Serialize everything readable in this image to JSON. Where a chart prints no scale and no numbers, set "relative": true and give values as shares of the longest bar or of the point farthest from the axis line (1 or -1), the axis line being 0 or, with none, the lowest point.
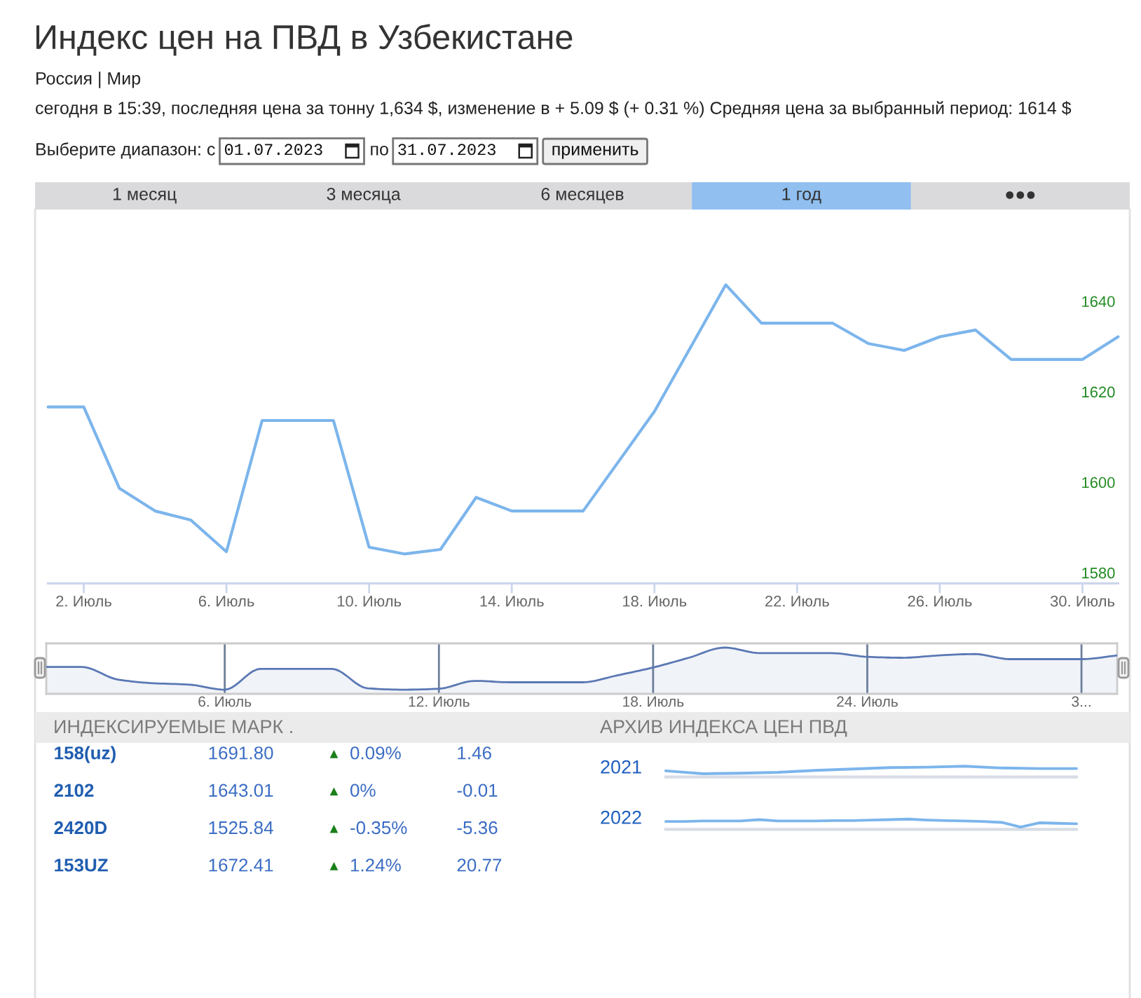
{
  "chart_data": [
    {
      "type": "line",
      "title": "Индекс цен на ПВД в Узбекистане",
      "subtitle": "Россия | Мир",
      "annotations": [
        "сегодня в 15:39, последняя цена за тонну 1,634 $, изменение в + 5.09 $ (+ 0.31 %) Средняя цена за выбранный период: 1614 $",
        "Выберите диапазон: с",
        "01.07.2023",
        "по",
        "31.07.2023",
        "применить",
        "1 месяц",
        "3 месяца",
        "6 месяцев",
        "1 год",
        "●●●"
      ],
      "x": [
        "2023-07-01",
        "2023-07-02",
        "2023-07-03",
        "2023-07-04",
        "2023-07-05",
        "2023-07-06",
        "2023-07-07",
        "2023-07-08",
        "2023-07-09",
        "2023-07-10",
        "2023-07-11",
        "2023-07-12",
        "2023-07-13",
        "2023-07-14",
        "2023-07-15",
        "2023-07-16",
        "2023-07-17",
        "2023-07-18",
        "2023-07-19",
        "2023-07-20",
        "2023-07-21",
        "2023-07-22",
        "2023-07-23",
        "2023-07-24",
        "2023-07-25",
        "2023-07-26",
        "2023-07-27",
        "2023-07-28",
        "2023-07-29",
        "2023-07-30",
        "2023-07-31"
      ],
      "xlim": [
        "2023-07-01",
        "2023-07-31"
      ],
      "xticks": [
        {
          "value": "2023-07-02",
          "label": "2. Июль"
        },
        {
          "value": "2023-07-06",
          "label": "6. Июль"
        },
        {
          "value": "2023-07-10",
          "label": "10. Июль"
        },
        {
          "value": "2023-07-14",
          "label": "14. Июль"
        },
        {
          "value": "2023-07-18",
          "label": "18. Июль"
        },
        {
          "value": "2023-07-22",
          "label": "22. Июль"
        },
        {
          "value": "2023-07-26",
          "label": "26. Июль"
        },
        {
          "value": "2023-07-30",
          "label": "30. Июль"
        }
      ],
      "ylim": [
        1578,
        1660.5
      ],
      "yticks": [
        1580,
        1600,
        1620,
        1640
      ],
      "series": [
        {
          "color": "#7cb5ec",
          "values": [
            1617,
            1617,
            1599,
            1594,
            1592,
            1585,
            1614,
            1614,
            1614,
            1586,
            1584.5,
            1585.5,
            1597,
            1594,
            1594,
            1594,
            1605,
            1616,
            1630,
            1644,
            1635.5,
            1635.5,
            1635.5,
            1631,
            1629.5,
            1632.5,
            1634,
            1627.5,
            1627.5,
            1627.5,
            1632.5
          ]
        }
      ]
    },
    {
      "type": "area",
      "relative": true,
      "x": [
        "2023-07-01",
        "2023-07-02",
        "2023-07-03",
        "2023-07-04",
        "2023-07-05",
        "2023-07-06",
        "2023-07-07",
        "2023-07-08",
        "2023-07-09",
        "2023-07-10",
        "2023-07-11",
        "2023-07-12",
        "2023-07-13",
        "2023-07-14",
        "2023-07-15",
        "2023-07-16",
        "2023-07-17",
        "2023-07-18",
        "2023-07-19",
        "2023-07-20",
        "2023-07-21",
        "2023-07-22",
        "2023-07-23",
        "2023-07-24",
        "2023-07-25",
        "2023-07-26",
        "2023-07-27",
        "2023-07-28",
        "2023-07-29",
        "2023-07-30",
        "2023-07-31"
      ],
      "xlim": [
        "2023-07-01",
        "2023-07-31"
      ],
      "xticks": [
        {
          "value": "2023-07-06",
          "label": "6. Июль"
        },
        {
          "value": "2023-07-12",
          "label": "12. Июль"
        },
        {
          "value": "2023-07-18",
          "label": "18. Июль"
        },
        {
          "value": "2023-07-24",
          "label": "24. Июль"
        },
        {
          "value": "2023-07-30",
          "label": "3..."
        }
      ],
      "grid": "x",
      "series": [
        {
          "color": "#5a78b4",
          "values": [
            0.58,
            0.58,
            0.31,
            0.23,
            0.2,
            0.09,
            0.54,
            0.54,
            0.54,
            0.12,
            0.09,
            0.11,
            0.28,
            0.25,
            0.25,
            0.25,
            0.4,
            0.57,
            0.78,
            1,
            0.88,
            0.88,
            0.88,
            0.8,
            0.78,
            0.83,
            0.86,
            0.75,
            0.75,
            0.75,
            0.83
          ]
        }
      ]
    },
    {
      "type": "other",
      "title": "ИНДЕКСИРУЕМЫЕ МАРК .",
      "annotations": [
        "158(uz)",
        "1691.80",
        "▲",
        "0.09%",
        "1.46",
        "2102",
        "1643.01",
        "▲",
        "0%",
        "-0.01",
        "2420D",
        "1525.84",
        "▲",
        "-0.35%",
        "-5.36",
        "153UZ",
        "1672.41",
        "▲",
        "1.24%",
        "20.77"
      ]
    },
    {
      "type": "line",
      "relative": true,
      "title": "АРХИВ ИНДЕКСА ЦЕН ПВД",
      "ylabel": "2021",
      "categories": [
        null,
        null,
        null,
        null,
        null,
        null,
        null,
        null,
        null,
        null,
        null,
        null
      ],
      "series": [
        {
          "color": "#7cb5ec",
          "values": [
            0.57,
            0.3,
            0.35,
            0.43,
            0.61,
            0.74,
            0.87,
            0.91,
            1,
            0.83,
            0.78,
            0.78
          ]
        }
      ]
    },
    {
      "type": "line",
      "relative": true,
      "ylabel": "2022",
      "categories": [
        null,
        null,
        null,
        null,
        null,
        null,
        null,
        null,
        null,
        null,
        null,
        null,
        null,
        null,
        null,
        null,
        null,
        null,
        null,
        null,
        null,
        null,
        null
      ],
      "series": [
        {
          "color": "#7cb5ec",
          "values": [
            0.77,
            0.77,
            0.82,
            0.82,
            0.82,
            0.95,
            0.82,
            0.82,
            0.82,
            0.86,
            0.86,
            0.91,
            0.95,
            1,
            0.91,
            0.86,
            0.82,
            0.77,
            0.68,
            0.23,
            0.64,
            0.59,
            0.55
          ]
        }
      ]
    }
  ]
}
